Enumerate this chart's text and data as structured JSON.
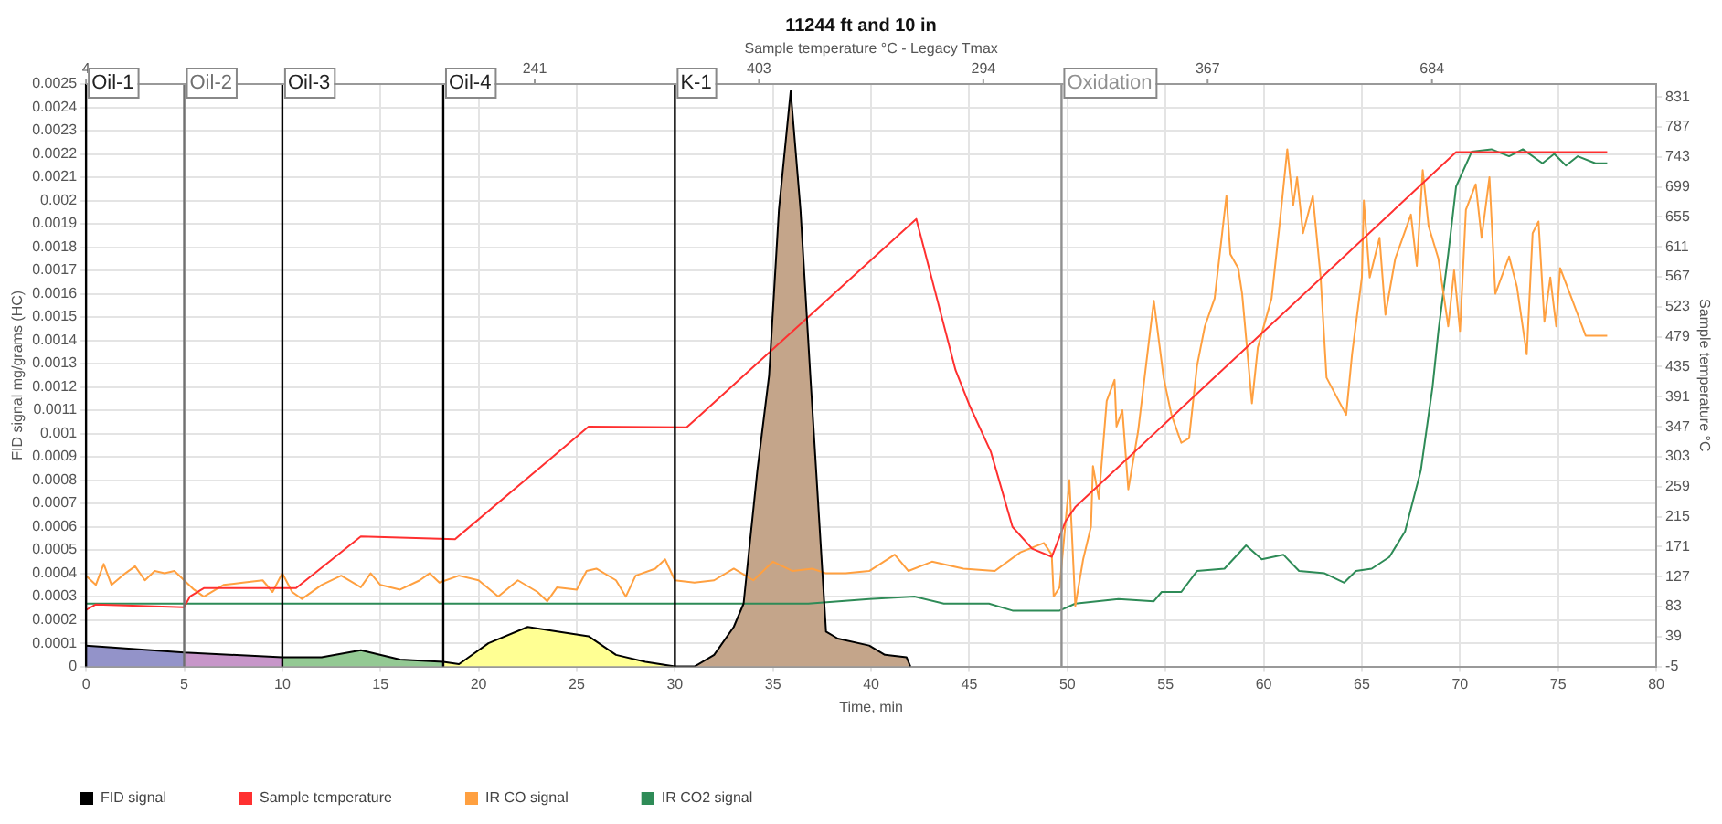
{
  "chart_data": {
    "type": "line",
    "title": "11244 ft and 10 in",
    "xlabel": "Time, min",
    "x2label": "Sample temperature °C - Legacy Tmax",
    "ylabel": "FID signal mg/grams (HC)",
    "y2label": "Sample temperature °C",
    "xlim": [
      0,
      80
    ],
    "xticks": [
      0,
      5,
      10,
      15,
      20,
      25,
      30,
      35,
      40,
      45,
      50,
      55,
      60,
      65,
      70,
      75,
      80
    ],
    "annotations": [
      "4",
      "241",
      "403",
      "294",
      "367",
      "684"
    ],
    "ylim": [
      0,
      0.0025
    ],
    "yticks": [
      0,
      0.0001,
      0.0002,
      0.0003,
      0.0004,
      0.0005,
      0.0006,
      0.0007,
      0.0008,
      0.0009,
      0.001,
      0.0011,
      0.0012,
      0.0013,
      0.0014,
      0.0015,
      0.0016,
      0.0017,
      0.0018,
      0.0019,
      0.002,
      0.0021,
      0.0022,
      0.0023,
      0.0024,
      0.0025
    ],
    "y2lim": [
      -5,
      850
    ],
    "y2ticks": [
      -5,
      39,
      83,
      127,
      171,
      215,
      259,
      303,
      347,
      391,
      435,
      479,
      523,
      567,
      611,
      655,
      699,
      743,
      787,
      831
    ],
    "grid": true,
    "legend": "bottom left",
    "ref_lines": [
      {
        "axis": "x",
        "value": 0,
        "label": "Oil-1",
        "color": "#000000"
      },
      {
        "axis": "x",
        "value": 5,
        "label": "Oil-2",
        "color": "#707070"
      },
      {
        "axis": "x",
        "value": 10,
        "label": "Oil-3",
        "color": "#000000"
      },
      {
        "axis": "x",
        "value": 18.2,
        "label": "Oil-4",
        "color": "#000000"
      },
      {
        "axis": "x",
        "value": 30,
        "label": "K-1",
        "color": "#000000"
      },
      {
        "axis": "x",
        "value": 49.7,
        "label": "Oxidation",
        "color": "#909090"
      }
    ],
    "series": [
      {
        "name": "FID signal",
        "color": "#000000",
        "x": [
          0,
          5,
          10,
          12,
          14,
          16,
          18.2,
          19,
          20.5,
          22.5,
          24,
          25.6,
          27,
          28.5,
          30,
          31,
          32,
          33,
          33.5,
          34.2,
          34.8,
          35.3,
          35.9,
          36.4,
          36.9,
          37.7,
          38.3,
          39.9,
          40.7,
          41.8,
          42
        ],
        "values": [
          9e-05,
          6e-05,
          4e-05,
          4e-05,
          7e-05,
          3e-05,
          2e-05,
          1e-05,
          0.0001,
          0.00017,
          0.00015,
          0.00013,
          5e-05,
          2e-05,
          0,
          0,
          5e-05,
          0.00017,
          0.00027,
          0.00084,
          0.00125,
          0.00196,
          0.00247,
          0.00196,
          0.00125,
          0.00015,
          0.00012,
          9e-05,
          5e-05,
          4e-05,
          0
        ]
      },
      {
        "type": "area",
        "color": "#9393c9",
        "x": [
          0,
          5
        ],
        "values": [
          9e-05,
          6e-05
        ]
      },
      {
        "type": "area",
        "color": "#c796c9",
        "x": [
          5,
          10
        ],
        "values": [
          6e-05,
          4e-05
        ]
      },
      {
        "type": "area",
        "color": "#93c993",
        "x": [
          10,
          12,
          14,
          16,
          18.2
        ],
        "values": [
          4e-05,
          4e-05,
          7e-05,
          3e-05,
          2e-05
        ]
      },
      {
        "type": "area",
        "color": "#ffff93",
        "x": [
          18.2,
          19,
          20.5,
          22.5,
          24,
          25.6,
          27,
          28.5,
          30
        ],
        "values": [
          2e-05,
          1e-05,
          0.0001,
          0.00017,
          0.00015,
          0.00013,
          5e-05,
          2e-05,
          0
        ]
      },
      {
        "type": "area",
        "color": "#c4a58a",
        "x": [
          30,
          31,
          32,
          33,
          33.5,
          34.2,
          34.8,
          35.3,
          35.9,
          36.4,
          36.9,
          37.7,
          38.3,
          39.9,
          40.7,
          41.8,
          42
        ],
        "values": [
          0,
          0,
          5e-05,
          0.00017,
          0.00027,
          0.00084,
          0.00125,
          0.00196,
          0.00247,
          0.00196,
          0.00125,
          0.00015,
          0.00012,
          9e-05,
          5e-05,
          4e-05,
          0
        ]
      },
      {
        "name": "Sample temperature",
        "color": "#ff3030",
        "axis": "y2",
        "x": [
          0,
          0.5,
          5,
          5.3,
          6,
          10.7,
          14,
          18.8,
          25.6,
          30.6,
          42.3,
          44.3,
          45,
          46.1,
          47.2,
          48.2,
          49.2,
          49.9,
          50.4,
          69.8,
          77.5
        ],
        "values": [
          78,
          86,
          82,
          98,
          110,
          110,
          186,
          182,
          347,
          346,
          652,
          430,
          379,
          310,
          200,
          168,
          156,
          208,
          229,
          750,
          750
        ]
      },
      {
        "name": "IR CO signal",
        "color": "#ffa040",
        "x": [
          0,
          0.5,
          0.9,
          1.3,
          2,
          2.5,
          3,
          3.5,
          4,
          4.5,
          5,
          5.5,
          6,
          7,
          8,
          9,
          9.5,
          10,
          10.5,
          11,
          12,
          13,
          14,
          14.5,
          15,
          16,
          17,
          17.5,
          18,
          19,
          20,
          21,
          22,
          23,
          23.5,
          24,
          25,
          25.5,
          26,
          27,
          27.5,
          28,
          29,
          29.5,
          30,
          31,
          32,
          33,
          34,
          35,
          36,
          37,
          37.7,
          38.7,
          39.9,
          41.2,
          41.9,
          43.1,
          44.7,
          46.3,
          47.6,
          48.8,
          49.2,
          49.3,
          49.6,
          50.1,
          50.4,
          50.8,
          51.2,
          51.3,
          51.6,
          52,
          52.4,
          52.5,
          52.8,
          53.1,
          53.6,
          54.4,
          54.9,
          55.3,
          55.8,
          56.2,
          56.6,
          57,
          57.5,
          58.1,
          58.3,
          58.7,
          58.9,
          59.4,
          59.7,
          60.4,
          60.8,
          61.2,
          61.5,
          61.7,
          62,
          62.5,
          62.9,
          63.2,
          64.2,
          64.5,
          65,
          65.1,
          65.4,
          65.9,
          66.2,
          66.7,
          67.5,
          67.8,
          68.1,
          68.4,
          68.9,
          69.4,
          69.7,
          70,
          70.3,
          70.8,
          71.1,
          71.5,
          71.8,
          72.5,
          72.9,
          73.4,
          73.7,
          74,
          74.3,
          74.6,
          74.9,
          75.1,
          75.6,
          76,
          76.4,
          77.5
        ],
        "values": [
          0.00039,
          0.00035,
          0.00044,
          0.00035,
          0.0004,
          0.00043,
          0.00037,
          0.00041,
          0.0004,
          0.00041,
          0.00037,
          0.00033,
          0.0003,
          0.00035,
          0.00036,
          0.00037,
          0.00032,
          0.0004,
          0.00032,
          0.00029,
          0.00035,
          0.00039,
          0.00034,
          0.0004,
          0.00035,
          0.00033,
          0.00037,
          0.0004,
          0.00036,
          0.00039,
          0.00037,
          0.0003,
          0.00037,
          0.00032,
          0.00028,
          0.00034,
          0.00033,
          0.00041,
          0.00042,
          0.00037,
          0.0003,
          0.00039,
          0.00042,
          0.00046,
          0.00037,
          0.00036,
          0.00037,
          0.00042,
          0.00037,
          0.00045,
          0.00041,
          0.00042,
          0.0004,
          0.0004,
          0.00041,
          0.00048,
          0.00041,
          0.00045,
          0.00042,
          0.00041,
          0.00049,
          0.00053,
          0.00048,
          0.0003,
          0.00034,
          0.0008,
          0.00026,
          0.00046,
          0.0006,
          0.00086,
          0.00072,
          0.00114,
          0.00123,
          0.00103,
          0.0011,
          0.00076,
          0.00101,
          0.00157,
          0.00124,
          0.00108,
          0.00096,
          0.00098,
          0.00129,
          0.00146,
          0.00158,
          0.00202,
          0.00177,
          0.00171,
          0.0016,
          0.00113,
          0.00137,
          0.00158,
          0.00189,
          0.00222,
          0.00198,
          0.0021,
          0.00186,
          0.00202,
          0.00167,
          0.00124,
          0.00108,
          0.00134,
          0.00167,
          0.002,
          0.00167,
          0.00184,
          0.00151,
          0.00175,
          0.00194,
          0.00172,
          0.00213,
          0.00189,
          0.00175,
          0.00146,
          0.0017,
          0.00144,
          0.00196,
          0.00207,
          0.00184,
          0.0021,
          0.0016,
          0.00176,
          0.00163,
          0.00134,
          0.00186,
          0.00191,
          0.00148,
          0.00167,
          0.00146,
          0.00171,
          0.0016,
          0.00151,
          0.00142,
          0.00142
        ]
      },
      {
        "name": "IR CO2 signal",
        "color": "#2e8b57",
        "x": [
          0,
          10,
          20,
          30,
          36.8,
          39.9,
          42.2,
          43.7,
          46,
          47.2,
          49.6,
          50.4,
          52.6,
          54.4,
          54.8,
          55.8,
          56.6,
          58,
          59.1,
          59.9,
          61,
          61.8,
          63.1,
          64.1,
          64.7,
          65.5,
          66.4,
          67.2,
          68,
          68.6,
          68.9,
          69.4,
          69.8,
          70.6,
          71.6,
          72.5,
          73.2,
          74.2,
          74.8,
          75.4,
          76,
          76.9,
          77.5
        ],
        "values": [
          0.00027,
          0.00027,
          0.00027,
          0.00027,
          0.00027,
          0.00029,
          0.0003,
          0.00027,
          0.00027,
          0.00024,
          0.00024,
          0.00027,
          0.00029,
          0.00028,
          0.00032,
          0.00032,
          0.00041,
          0.00042,
          0.00052,
          0.00046,
          0.00048,
          0.00041,
          0.0004,
          0.00036,
          0.00041,
          0.00042,
          0.00047,
          0.00058,
          0.00084,
          0.0012,
          0.00144,
          0.00177,
          0.00206,
          0.00221,
          0.00222,
          0.00219,
          0.00222,
          0.00216,
          0.0022,
          0.00215,
          0.00219,
          0.00216,
          0.00216
        ]
      }
    ]
  }
}
